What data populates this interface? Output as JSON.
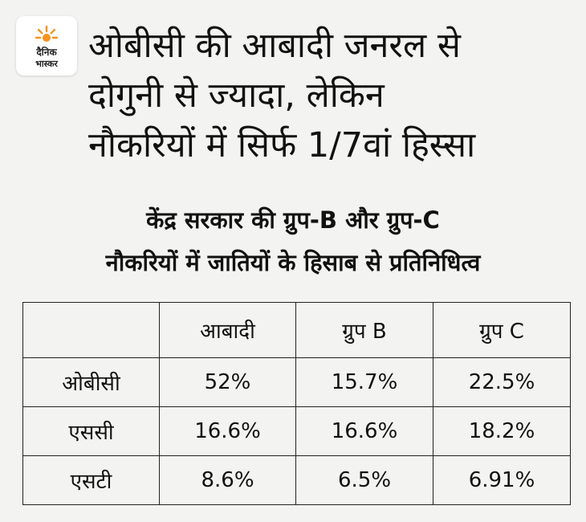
{
  "brand": {
    "logo_text_top": "दैनिक",
    "logo_text_bottom": "भास्कर",
    "accent_color": "#f7931e",
    "logo_icon": "sun-burst-icon"
  },
  "headline": {
    "lines": [
      "ओबीसी की आबादी जनरल से",
      "दोगुनी से ज्यादा, लेकिन",
      "नौकरियों में सिर्फ 1/7वां हिस्सा"
    ]
  },
  "subtitle": {
    "lines": [
      "केंद्र सरकार की ग्रुप-B और ग्रुप-C",
      "नौकरियों में जातियों के हिसाब से प्रतिनिधित्व"
    ]
  },
  "table": {
    "headers": [
      "",
      "आबादी",
      "ग्रुप B",
      "ग्रुप C"
    ],
    "rows": [
      {
        "category": "ओबीसी",
        "population": "52%",
        "group_b": "15.7%",
        "group_c": "22.5%"
      },
      {
        "category": "एससी",
        "population": "16.6%",
        "group_b": "16.6%",
        "group_c": "18.2%"
      },
      {
        "category": "एसटी",
        "population": "8.6%",
        "group_b": "6.5%",
        "group_c": "6.91%"
      }
    ]
  }
}
